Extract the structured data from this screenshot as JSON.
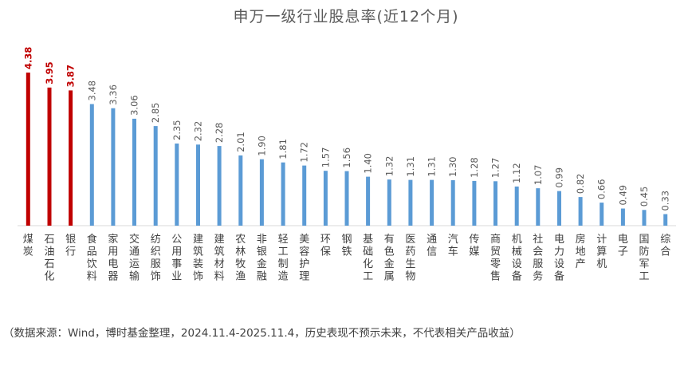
{
  "chart_data": {
    "type": "bar",
    "title": "申万一级行业股息率(近12个月)",
    "xlabel": "",
    "ylabel": "",
    "ylim": [
      0,
      4.8
    ],
    "grid": false,
    "legend": "none",
    "categories": [
      "煤炭",
      "石油石化",
      "银行",
      "食品饮料",
      "家用电器",
      "交通运输",
      "纺织服饰",
      "公用事业",
      "建筑装饰",
      "建筑材料",
      "农林牧渔",
      "非银金融",
      "轻工制造",
      "美容护理",
      "环保",
      "钢铁",
      "基础化工",
      "有色金属",
      "医药生物",
      "通信",
      "汽车",
      "传媒",
      "商贸零售",
      "机械设备",
      "社会服务",
      "电力设备",
      "房地产",
      "计算机",
      "电子",
      "国防军工",
      "综合"
    ],
    "values": [
      4.38,
      3.95,
      3.87,
      3.48,
      3.36,
      3.06,
      2.85,
      2.35,
      2.32,
      2.28,
      2.01,
      1.9,
      1.81,
      1.72,
      1.57,
      1.56,
      1.4,
      1.32,
      1.31,
      1.31,
      1.3,
      1.28,
      1.27,
      1.12,
      1.07,
      0.99,
      0.82,
      0.66,
      0.49,
      0.45,
      0.33
    ],
    "value_labels": [
      "4.38",
      "3.95",
      "3.87",
      "3.48",
      "3.36",
      "3.06",
      "2.85",
      "2.35",
      "2.32",
      "2.28",
      "2.01",
      "1.90",
      "1.81",
      "1.72",
      "1.57",
      "1.56",
      "1.40",
      "1.32",
      "1.31",
      "1.31",
      "1.30",
      "1.28",
      "1.27",
      "1.12",
      "1.07",
      "0.99",
      "0.82",
      "0.66",
      "0.49",
      "0.45",
      "0.33"
    ],
    "highlight_count": 3,
    "colors": {
      "highlight": "#C00000",
      "normal": "#5B9BD5",
      "axis": "#D9D9D9",
      "label_highlight": "#C00000",
      "label_normal": "#595959"
    }
  },
  "source_note": "（数据来源：Wind，博时基金整理，2024.11.4-2025.11.4，历史表现不预示未来，不代表相关产品收益）"
}
